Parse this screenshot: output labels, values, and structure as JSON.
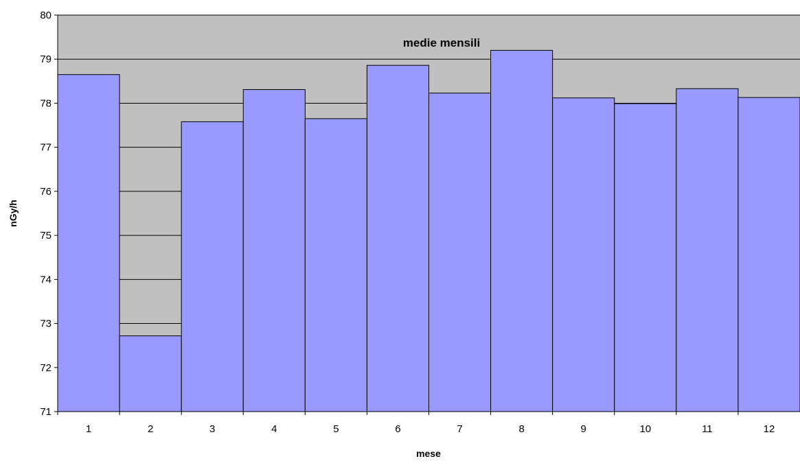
{
  "chart_data": {
    "type": "bar",
    "title": "medie mensili",
    "xlabel": "mese",
    "ylabel": "nGy/h",
    "categories": [
      "1",
      "2",
      "3",
      "4",
      "5",
      "6",
      "7",
      "8",
      "9",
      "10",
      "11",
      "12"
    ],
    "values": [
      78.65,
      72.72,
      77.58,
      78.31,
      77.65,
      78.86,
      78.23,
      79.2,
      78.12,
      77.99,
      78.33,
      78.13
    ],
    "ylim": [
      71,
      80
    ],
    "yticks": [
      "71",
      "72",
      "73",
      "74",
      "75",
      "76",
      "77",
      "78",
      "79",
      "80"
    ],
    "grid": true,
    "legend": "none",
    "colors": {
      "bar_fill": "#9999ff",
      "bar_stroke": "#000000",
      "plot_background": "#c0c0c0",
      "gridline": "#000000"
    }
  }
}
